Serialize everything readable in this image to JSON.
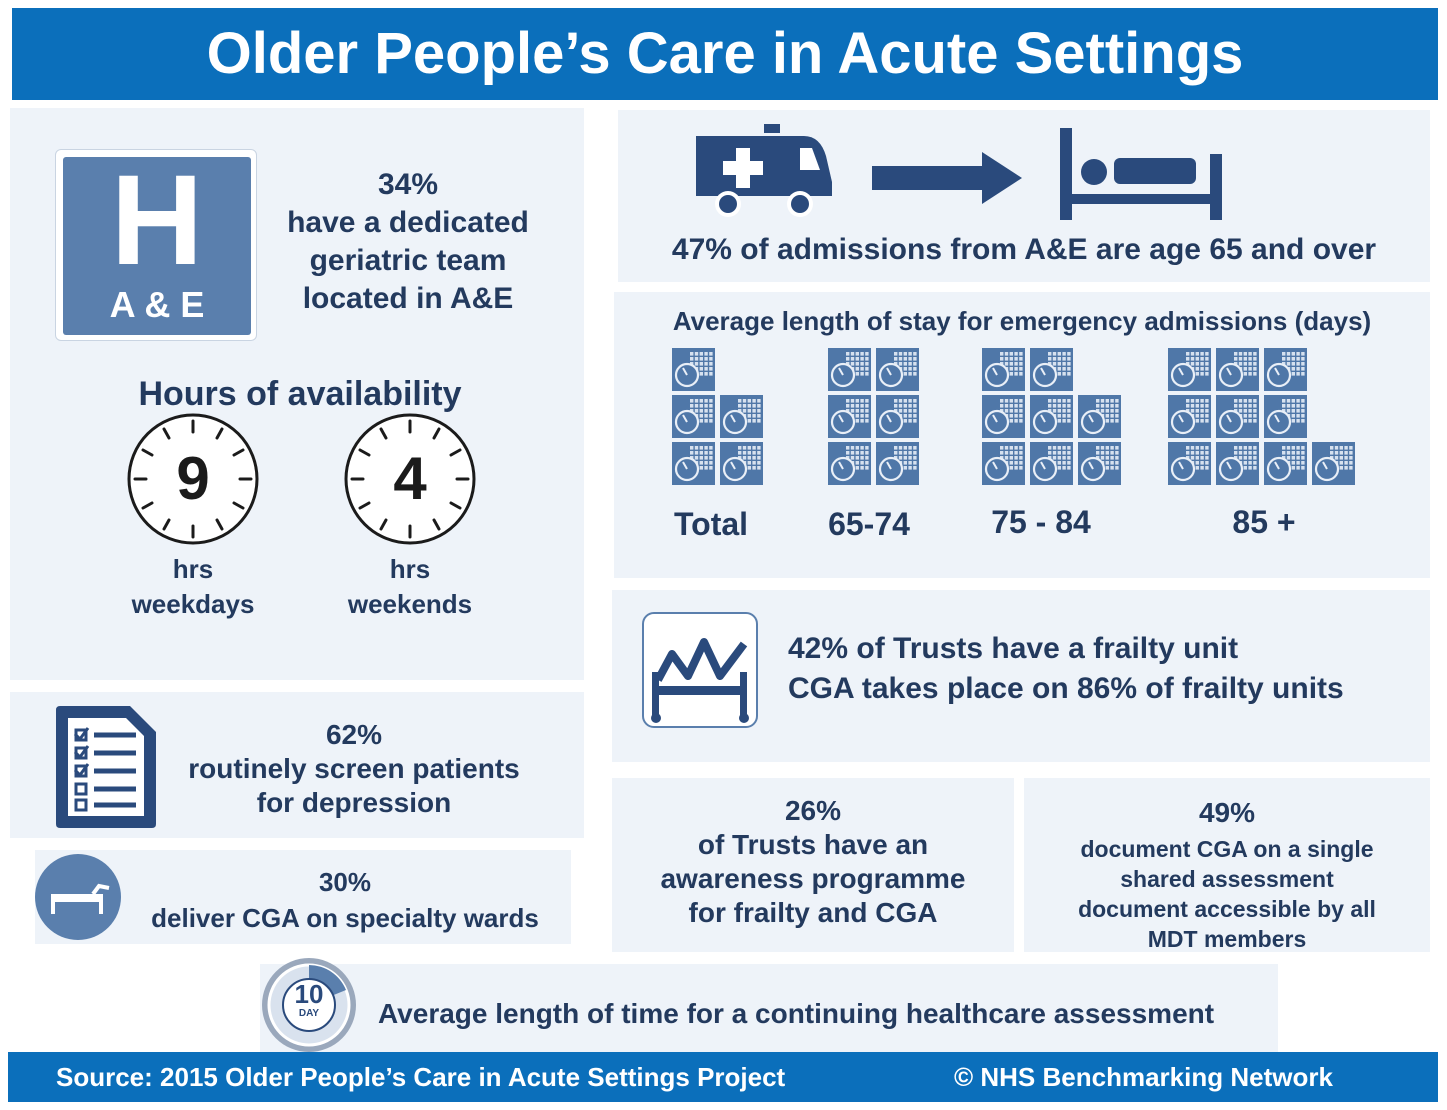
{
  "title": "Older People’s Care in Acute Settings",
  "ae": {
    "icon_letter": "H",
    "icon_label": "A & E",
    "pct": "34%",
    "text_lines": [
      "have a dedicated",
      "geriatric team",
      "located in A&E"
    ]
  },
  "hours": {
    "heading": "Hours of availability",
    "weekdays": {
      "value": "9",
      "line1": "hrs",
      "line2": "weekdays"
    },
    "weekends": {
      "value": "4",
      "line1": "hrs",
      "line2": "weekends"
    }
  },
  "admissions": {
    "text": "47% of admissions from A&E are age 65 and over"
  },
  "stay": {
    "heading": "Average length of stay for emergency admissions (days)",
    "groups": [
      {
        "label": "Total",
        "days": 5
      },
      {
        "label": "65-74",
        "days": 6
      },
      {
        "label": "75 - 84",
        "days": 8
      },
      {
        "label": "85 +",
        "days": 10
      }
    ]
  },
  "frailty": {
    "line1": "42% of Trusts have a frailty unit",
    "line2": "CGA takes place on 86% of frailty units"
  },
  "depression": {
    "pct": "62%",
    "line1": "routinely screen patients",
    "line2": "for depression"
  },
  "cga_wards": {
    "pct": "30%",
    "text": "deliver CGA on specialty wards"
  },
  "awareness": {
    "pct": "26%",
    "lines": [
      "of Trusts have an",
      "awareness programme",
      "for frailty and CGA"
    ]
  },
  "document": {
    "pct": "49%",
    "lines": [
      "document CGA on a single",
      "shared assessment",
      "document accessible by all",
      "MDT members"
    ]
  },
  "chc": {
    "badge_value": "10",
    "badge_unit": "DAY",
    "text": "Average length of time for a continuing healthcare assessment"
  },
  "footer": {
    "source": "Source: 2015 Older People’s Care in Acute Settings Project",
    "copyright": "© NHS Benchmarking Network"
  },
  "colors": {
    "header_blue": "#0b6fbb",
    "panel": "#eef3f9",
    "text_navy": "#233a5e",
    "icon_blue": "#5a7fad",
    "icon_navy": "#2a4a7c"
  }
}
